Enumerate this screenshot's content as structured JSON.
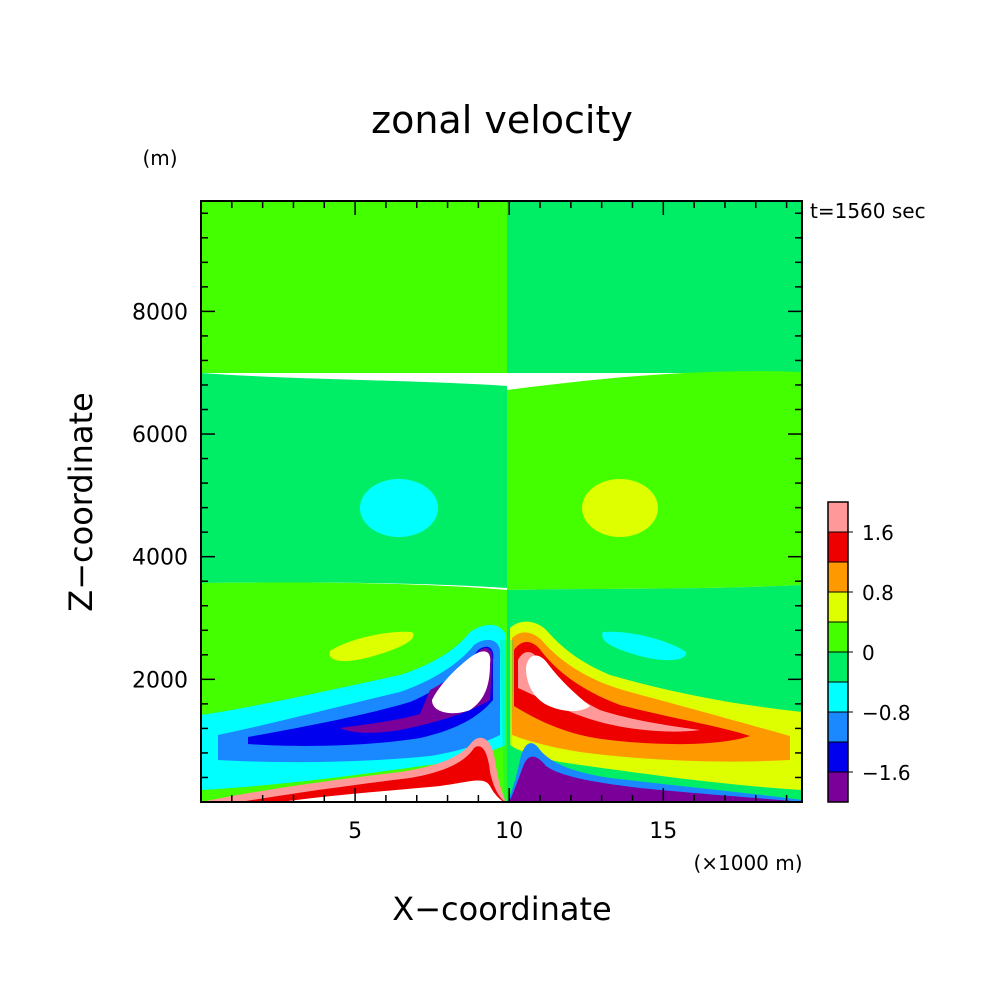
{
  "chart_data": {
    "type": "heatmap",
    "title": "zonal velocity",
    "xlabel": "X−coordinate",
    "ylabel": "Z−coordinate",
    "y_unit": "(m)",
    "x_unit": "(×1000 m)",
    "time_label": "t=1560 sec",
    "xlim": [
      0,
      19.5
    ],
    "ylim": [
      0,
      9800
    ],
    "x_ticks": [
      5,
      10,
      15
    ],
    "x_tick_labels": [
      "5",
      "10",
      "15"
    ],
    "y_ticks": [
      2000,
      4000,
      6000,
      8000
    ],
    "y_tick_labels": [
      "2000",
      "4000",
      "6000",
      "8000"
    ],
    "colorbar": {
      "bins": [
        {
          "level": "< -1.6",
          "color": "#7b009a"
        },
        {
          "level": "-1.6 to -1.2",
          "color": "#0000ee"
        },
        {
          "level": "-1.2 to -0.8",
          "color": "#1a88ff"
        },
        {
          "level": "-0.8 to -0.4",
          "color": "#00ffff"
        },
        {
          "level": "-0.4 to 0",
          "color": "#00ee66"
        },
        {
          "level": "0 to 0.4",
          "color": "#44ff00"
        },
        {
          "level": "0.4 to 0.8",
          "color": "#ddff00"
        },
        {
          "level": "0.8 to 1.2",
          "color": "#ff9900"
        },
        {
          "level": "1.2 to 1.6",
          "color": "#ee0000"
        },
        {
          "level": "> 1.6",
          "color": "#ff9999"
        }
      ],
      "tick_labels": [
        "1.6",
        "0.8",
        "0",
        "−0.8",
        "−1.6"
      ],
      "tick_values": [
        1.6,
        0.8,
        0,
        -0.8,
        -1.6
      ]
    },
    "background_color": "#44ff00",
    "features": [
      {
        "desc": "upper left band",
        "x": [
          0,
          10
        ],
        "z": [
          6900,
          9800
        ],
        "bin": "0 to 0.4"
      },
      {
        "desc": "upper right band",
        "x": [
          10,
          19.5
        ],
        "z": [
          6900,
          9800
        ],
        "bin": "-0.4 to 0"
      },
      {
        "desc": "middle left band",
        "x": [
          0,
          10
        ],
        "z": [
          3600,
          6900
        ],
        "bin": "-0.4 to 0"
      },
      {
        "desc": "middle right band",
        "x": [
          10,
          19.5
        ],
        "z": [
          3600,
          6900
        ],
        "bin": "0 to 0.4"
      },
      {
        "desc": "negative cell",
        "x_center": 6.1,
        "z_center": 4800,
        "bin": "-0.8 to -0.4"
      },
      {
        "desc": "positive cell",
        "x_center": 14.0,
        "z_center": 4800,
        "bin": "0.4 to 0.8"
      },
      {
        "desc": "low-level negative wedge",
        "x": [
          0,
          10
        ],
        "z": [
          0,
          2800
        ],
        "min": "< -1.6"
      },
      {
        "desc": "low-level positive wedge",
        "x": [
          10,
          19.5
        ],
        "z": [
          0,
          2800
        ],
        "max": "> 1.6"
      }
    ]
  }
}
